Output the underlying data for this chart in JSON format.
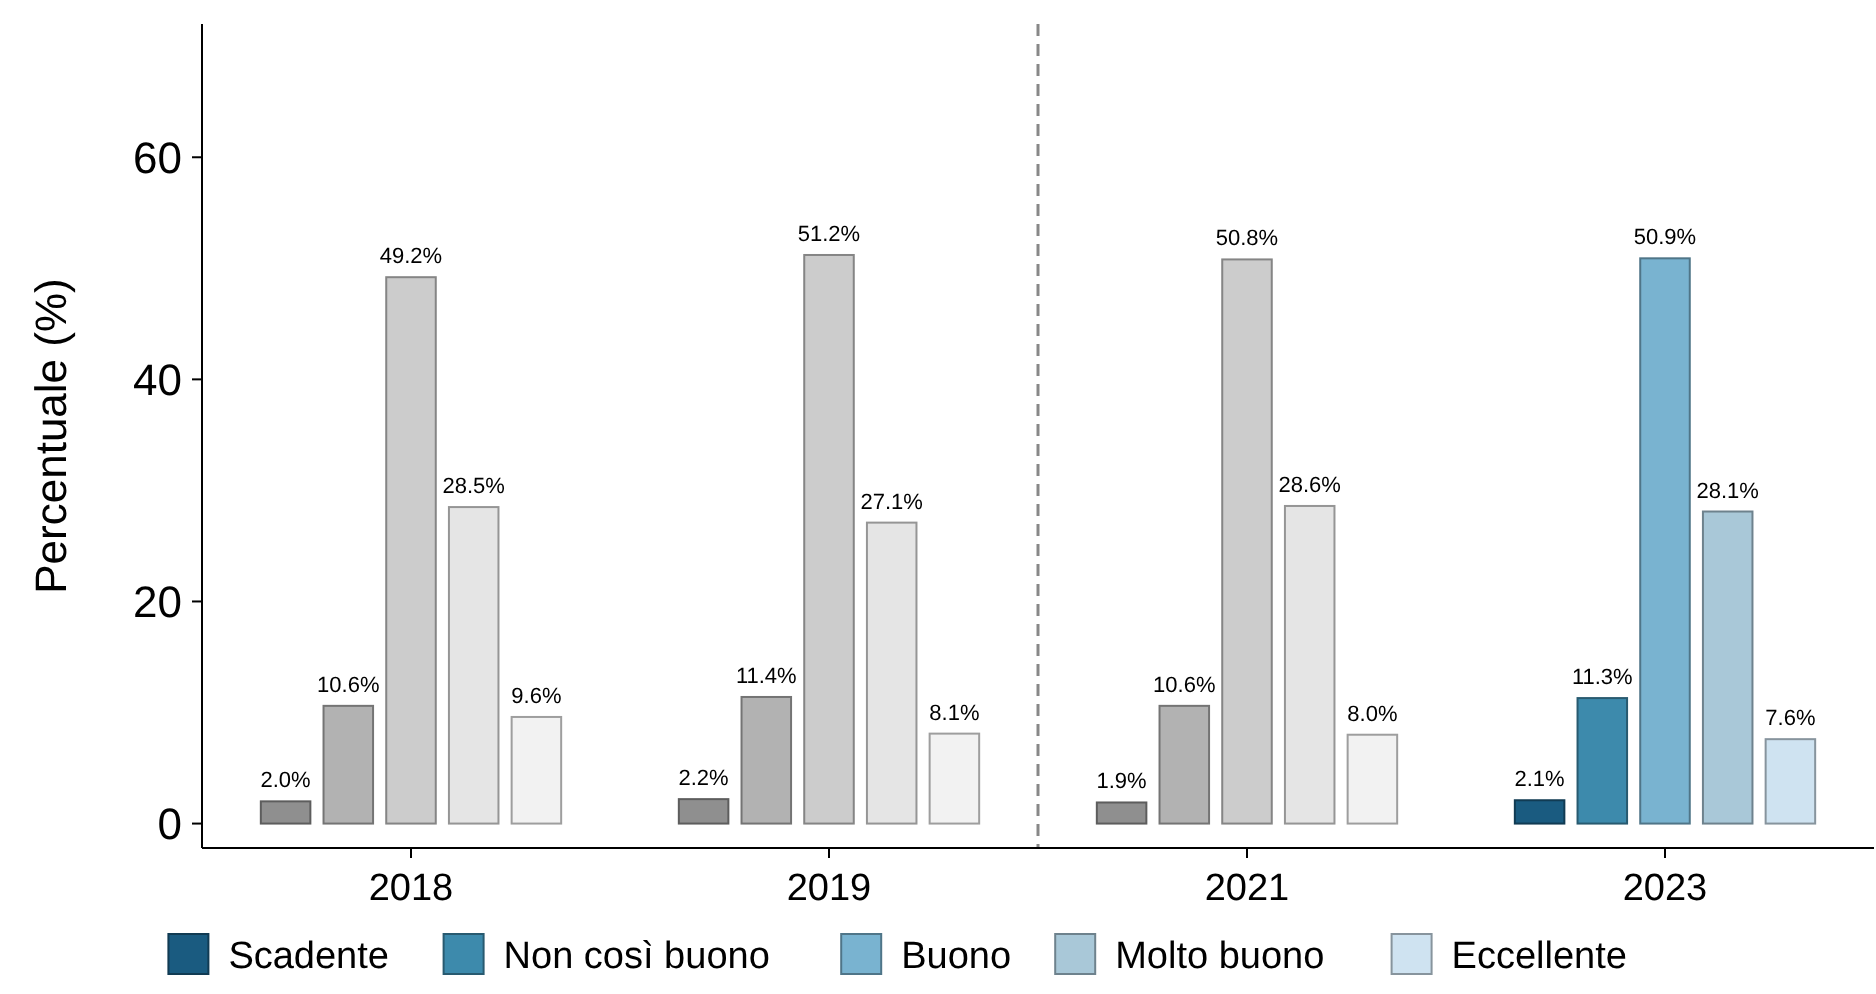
{
  "chart_data": {
    "type": "bar",
    "ylabel": "Percentuale (%)",
    "categories": [
      "2018",
      "2019",
      "2021",
      "2023"
    ],
    "series": [
      {
        "name": "Scadente",
        "color": "#1a5b80",
        "colors": [
          "#8f8f8f",
          "#8f8f8f",
          "#8f8f8f",
          "#1a5b80"
        ],
        "values": [
          2.0,
          2.2,
          1.9,
          2.1
        ],
        "value_labels": [
          "2.0%",
          "2.2%",
          "1.9%",
          "2.1%"
        ]
      },
      {
        "name": "Non così buono",
        "color": "#3d8aac",
        "colors": [
          "#b2b2b2",
          "#b2b2b2",
          "#b2b2b2",
          "#3d8aac"
        ],
        "values": [
          10.6,
          11.4,
          10.6,
          11.3
        ],
        "value_labels": [
          "10.6%",
          "11.4%",
          "10.6%",
          "11.3%"
        ]
      },
      {
        "name": "Buono",
        "color": "#79b3d0",
        "colors": [
          "#cccccc",
          "#cccccc",
          "#cccccc",
          "#79b3d0"
        ],
        "values": [
          49.2,
          51.2,
          50.8,
          50.9
        ],
        "value_labels": [
          "49.2%",
          "51.2%",
          "50.8%",
          "50.9%"
        ]
      },
      {
        "name": "Molto buono",
        "color": "#a9c8d8",
        "colors": [
          "#e5e5e5",
          "#e5e5e5",
          "#e5e5e5",
          "#a9c8d8"
        ],
        "values": [
          28.5,
          27.1,
          28.6,
          28.1
        ],
        "value_labels": [
          "28.5%",
          "27.1%",
          "28.6%",
          "28.1%"
        ]
      },
      {
        "name": "Eccellente",
        "color": "#cfe3f1",
        "colors": [
          "#f2f2f2",
          "#f2f2f2",
          "#f2f2f2",
          "#cfe3f1"
        ],
        "values": [
          9.6,
          8.1,
          8.0,
          7.6
        ],
        "value_labels": [
          "9.6%",
          "8.1%",
          "8.0%",
          "7.6%"
        ]
      }
    ],
    "ylim": [
      -2.2,
      72
    ],
    "yticks": [
      0,
      20,
      40,
      60
    ],
    "grid": false,
    "legend": "bottom"
  }
}
